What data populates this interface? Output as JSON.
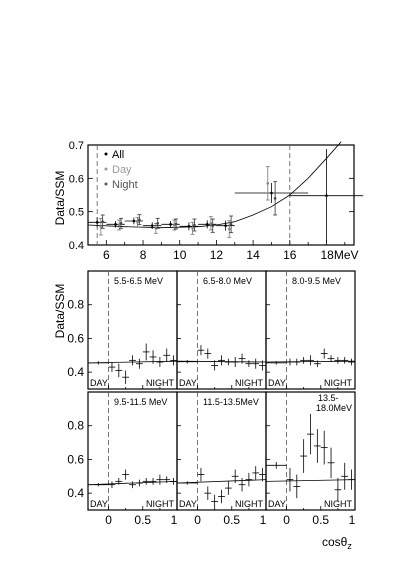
{
  "chart_data": [
    {
      "type": "scatter",
      "ylabel": "Data/SSM",
      "xunit": "MeV",
      "xlim": [
        5,
        19.5
      ],
      "ylim": [
        0.4,
        0.7
      ],
      "xticks": [
        6,
        8,
        10,
        12,
        14,
        16,
        18
      ],
      "xtick_labels": [
        "6",
        "8",
        "10",
        "12",
        "14",
        "16",
        "18MeV"
      ],
      "yticks": [
        0.4,
        0.5,
        0.6,
        0.7
      ],
      "ytick_labels": [
        "0.4",
        "0.5",
        "0.6",
        "0.7"
      ],
      "legend": {
        "placement": "top-left",
        "entries": [
          "All",
          "Day",
          "Night"
        ]
      },
      "vlines": [
        5.5,
        16
      ],
      "series": [
        {
          "name": "All",
          "x": [
            5.5,
            6.5,
            7.5,
            8.5,
            9.5,
            10.5,
            11.5,
            12.5,
            15,
            18
          ],
          "y": [
            0.468,
            0.462,
            0.472,
            0.458,
            0.462,
            0.456,
            0.462,
            0.458,
            0.556,
            0.548
          ],
          "xerr": [
            0.5,
            0.5,
            0.5,
            0.5,
            0.5,
            0.5,
            0.5,
            0.5,
            2.0,
            2.0
          ],
          "yerr": [
            0.015,
            0.01,
            0.01,
            0.01,
            0.01,
            0.012,
            0.012,
            0.015,
            0.03,
            0.14
          ]
        },
        {
          "name": "Day",
          "x": [
            5.7,
            6.7,
            7.7,
            8.7,
            9.7,
            10.7,
            11.7,
            12.7,
            14.8
          ],
          "y": [
            0.455,
            0.46,
            0.468,
            0.45,
            0.46,
            0.45,
            0.465,
            0.448,
            0.585
          ],
          "yerr": [
            0.025,
            0.015,
            0.015,
            0.015,
            0.015,
            0.018,
            0.02,
            0.025,
            0.05
          ]
        },
        {
          "name": "Night",
          "x": [
            5.8,
            6.8,
            7.8,
            8.8,
            9.8,
            10.8,
            11.8,
            12.8,
            15.2
          ],
          "y": [
            0.47,
            0.465,
            0.476,
            0.465,
            0.463,
            0.46,
            0.458,
            0.462,
            0.54
          ],
          "yerr": [
            0.02,
            0.015,
            0.015,
            0.015,
            0.015,
            0.018,
            0.02,
            0.025,
            0.05
          ]
        }
      ],
      "curve": {
        "x": [
          5,
          7,
          9,
          11,
          12,
          13,
          14,
          15,
          16,
          17,
          18,
          18.8
        ],
        "y": [
          0.46,
          0.455,
          0.452,
          0.455,
          0.46,
          0.47,
          0.49,
          0.515,
          0.55,
          0.6,
          0.66,
          0.71
        ]
      }
    },
    {
      "type": "scatter",
      "ylabel": "Data/SSM",
      "xlabel": "cosθz",
      "xlim": [
        -0.3,
        1
      ],
      "ylim": [
        0.3,
        1.0
      ],
      "xticks": [
        0,
        0.5,
        1
      ],
      "xtick_labels": [
        "0",
        "0.5",
        "1"
      ],
      "yticks": [
        0.4,
        0.6,
        0.8
      ],
      "ytick_labels": [
        "0.4",
        "0.6",
        "0.8"
      ],
      "day_label": "DAY",
      "night_label": "NIGHT",
      "panels": [
        {
          "title": "5.5-6.5 MeV",
          "day": [
            0.455,
            0.01
          ],
          "curve": [
            0.455,
            0.465
          ],
          "night": {
            "x": [
              0.05,
              0.15,
              0.25,
              0.35,
              0.45,
              0.55,
              0.65,
              0.75,
              0.85,
              0.95
            ],
            "y": [
              0.43,
              0.41,
              0.37,
              0.47,
              0.45,
              0.52,
              0.49,
              0.46,
              0.5,
              0.47
            ],
            "yerr": [
              0.03,
              0.04,
              0.04,
              0.03,
              0.03,
              0.05,
              0.04,
              0.03,
              0.04,
              0.03
            ]
          }
        },
        {
          "title": "6.5-8.0 MeV",
          "day": [
            0.462,
            0.01
          ],
          "curve": [
            0.465,
            0.46
          ],
          "night": {
            "x": [
              0.05,
              0.15,
              0.25,
              0.35,
              0.45,
              0.55,
              0.65,
              0.75,
              0.85,
              0.95
            ],
            "y": [
              0.53,
              0.51,
              0.44,
              0.47,
              0.46,
              0.46,
              0.48,
              0.45,
              0.45,
              0.44
            ],
            "yerr": [
              0.03,
              0.03,
              0.03,
              0.03,
              0.02,
              0.03,
              0.03,
              0.02,
              0.03,
              0.03
            ]
          }
        },
        {
          "title": "8.0-9.5 MeV",
          "day": [
            0.455,
            0.01
          ],
          "curve": [
            0.46,
            0.465
          ],
          "night": {
            "x": [
              0.05,
              0.15,
              0.25,
              0.35,
              0.45,
              0.55,
              0.65,
              0.75,
              0.85,
              0.95
            ],
            "y": [
              0.46,
              0.46,
              0.47,
              0.47,
              0.45,
              0.51,
              0.48,
              0.47,
              0.47,
              0.46
            ],
            "yerr": [
              0.02,
              0.02,
              0.02,
              0.03,
              0.02,
              0.03,
              0.02,
              0.02,
              0.02,
              0.02
            ]
          }
        },
        {
          "title": "9.5-11.5 MeV",
          "day": [
            0.45,
            0.01
          ],
          "curve": [
            0.45,
            0.47
          ],
          "night": {
            "x": [
              0.05,
              0.15,
              0.25,
              0.35,
              0.45,
              0.55,
              0.65,
              0.75,
              0.85,
              0.95
            ],
            "y": [
              0.45,
              0.47,
              0.51,
              0.45,
              0.46,
              0.47,
              0.47,
              0.48,
              0.48,
              0.47
            ],
            "yerr": [
              0.02,
              0.02,
              0.03,
              0.02,
              0.02,
              0.02,
              0.02,
              0.03,
              0.02,
              0.02
            ]
          }
        },
        {
          "title": "11.5-13.5MeV",
          "day": [
            0.46,
            0.01
          ],
          "curve": [
            0.46,
            0.48
          ],
          "night": {
            "x": [
              0.05,
              0.15,
              0.25,
              0.35,
              0.45,
              0.55,
              0.65,
              0.75,
              0.85,
              0.95
            ],
            "y": [
              0.51,
              0.4,
              0.35,
              0.38,
              0.43,
              0.5,
              0.45,
              0.48,
              0.52,
              0.51
            ],
            "yerr": [
              0.04,
              0.04,
              0.04,
              0.04,
              0.04,
              0.04,
              0.04,
              0.04,
              0.04,
              0.04
            ]
          }
        },
        {
          "title": "13.5-18.0MeV",
          "day": [
            0.565,
            0.02
          ],
          "curve": [
            0.47,
            0.48
          ],
          "night": {
            "x": [
              0.05,
              0.15,
              0.25,
              0.35,
              0.45,
              0.55,
              0.65,
              0.75,
              0.85,
              0.95
            ],
            "y": [
              0.48,
              0.44,
              0.62,
              0.75,
              0.68,
              0.67,
              0.58,
              0.42,
              0.5,
              0.48
            ],
            "yerr": [
              0.07,
              0.07,
              0.1,
              0.12,
              0.1,
              0.1,
              0.09,
              0.07,
              0.08,
              0.06
            ]
          }
        }
      ]
    }
  ]
}
